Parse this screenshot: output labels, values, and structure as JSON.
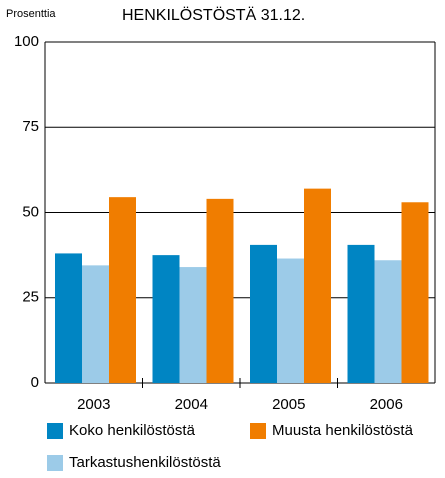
{
  "chart_data": {
    "type": "bar",
    "title": "HENKILÖSTÖSTÄ 31.12.",
    "y_label": "Prosenttia",
    "categories": [
      "2003",
      "2004",
      "2005",
      "2006"
    ],
    "series": [
      {
        "name": "Koko henkilöstöstä",
        "color": "#0085c3",
        "values": [
          38,
          37.5,
          40.5,
          40.5
        ]
      },
      {
        "name": "Muusta henkilöstöstä",
        "color": "#f07d00",
        "values": [
          54.5,
          54,
          57,
          53
        ]
      },
      {
        "name": "Tarkastushenkilöstöstä",
        "color": "#9ccbe8",
        "values": [
          34.5,
          34,
          36.5,
          36
        ]
      }
    ],
    "ylim": [
      0,
      100
    ],
    "yticks": [
      0,
      25,
      50,
      75,
      100
    ],
    "grid": true
  }
}
